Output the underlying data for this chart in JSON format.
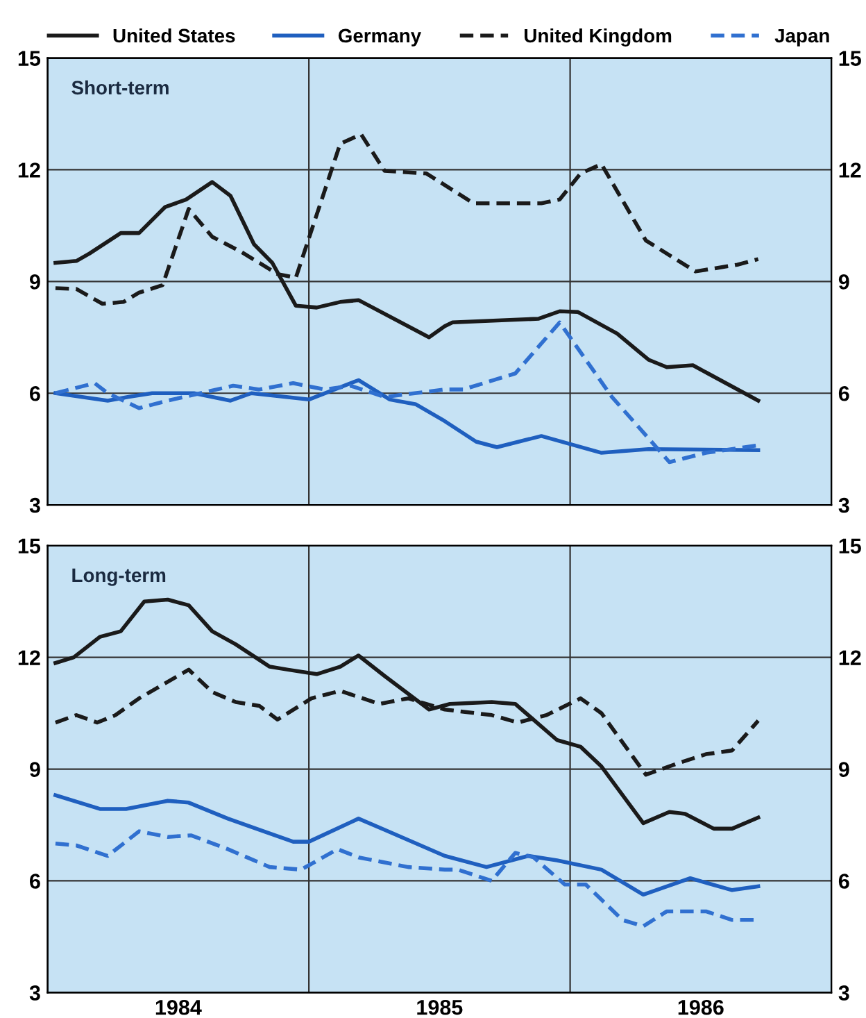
{
  "chart_data": [
    {
      "type": "line",
      "annotations": [
        "Short-term"
      ],
      "legend": "top",
      "grid": "y",
      "tick_labels": "y",
      "xlim": [
        1984,
        1987
      ],
      "ylim": [
        3,
        15
      ],
      "yticks": [
        3,
        6,
        9,
        12,
        15
      ],
      "y2lim": [
        3,
        15
      ],
      "y2ticks": [
        3,
        6,
        9,
        12,
        15
      ],
      "ref_lines": [
        {
          "axis": "x",
          "value": 1985
        },
        {
          "axis": "x",
          "value": 1986
        }
      ],
      "series": [
        {
          "name": "United States",
          "color": "#1a1a1a",
          "line_style": "solid",
          "x": [
            1984.03,
            1984.11,
            1984.16,
            1984.28,
            1984.35,
            1984.45,
            1984.53,
            1984.63,
            1984.7,
            1984.79,
            1984.86,
            1984.95,
            1985.03,
            1985.12,
            1985.19,
            1985.46,
            1985.52,
            1985.55,
            1985.88,
            1985.96,
            1986.03,
            1986.18,
            1986.3,
            1986.37,
            1986.47,
            1986.72
          ],
          "values": [
            9.5,
            9.55,
            9.75,
            10.3,
            10.3,
            11.0,
            11.2,
            11.67,
            11.3,
            10.0,
            9.5,
            8.35,
            8.3,
            8.45,
            8.5,
            7.5,
            7.8,
            7.9,
            8.0,
            8.2,
            8.18,
            7.6,
            6.9,
            6.7,
            6.75,
            5.8
          ]
        },
        {
          "name": "Germany",
          "color": "#1f5fbf",
          "line_style": "solid",
          "x": [
            1984.03,
            1984.23,
            1984.31,
            1984.4,
            1984.56,
            1984.7,
            1984.78,
            1985.0,
            1985.19,
            1985.31,
            1985.41,
            1985.52,
            1985.64,
            1985.72,
            1985.89,
            1986.12,
            1986.3,
            1986.72
          ],
          "values": [
            6.0,
            5.8,
            5.9,
            6.0,
            6.0,
            5.8,
            6.0,
            5.83,
            6.35,
            5.83,
            5.7,
            5.25,
            4.7,
            4.55,
            4.85,
            4.4,
            4.5,
            4.47
          ]
        },
        {
          "name": "United Kingdom",
          "color": "#1a1a1a",
          "line_style": "dashed",
          "x": [
            1984.03,
            1984.11,
            1984.21,
            1984.29,
            1984.35,
            1984.44,
            1984.54,
            1984.63,
            1984.74,
            1984.88,
            1984.95,
            1985.12,
            1985.2,
            1985.29,
            1985.45,
            1985.63,
            1985.89,
            1985.96,
            1986.04,
            1986.12,
            1986.29,
            1986.48,
            1986.64,
            1986.72
          ],
          "values": [
            8.82,
            8.8,
            8.4,
            8.45,
            8.7,
            8.9,
            10.95,
            10.2,
            9.8,
            9.2,
            9.1,
            12.7,
            12.95,
            11.97,
            11.9,
            11.1,
            11.1,
            11.2,
            11.9,
            12.15,
            10.1,
            9.27,
            9.45,
            9.6
          ]
        },
        {
          "name": "Japan",
          "color": "#3070d0",
          "line_style": "dashed",
          "x": [
            1984.03,
            1984.18,
            1984.23,
            1984.35,
            1984.46,
            1984.71,
            1984.81,
            1984.94,
            1985.06,
            1985.16,
            1985.29,
            1985.52,
            1985.59,
            1985.79,
            1985.96,
            1986.03,
            1986.16,
            1986.28,
            1986.38,
            1986.52,
            1986.72
          ],
          "values": [
            6.0,
            6.27,
            6.0,
            5.6,
            5.8,
            6.2,
            6.1,
            6.27,
            6.1,
            6.2,
            5.9,
            6.1,
            6.1,
            6.53,
            7.9,
            7.2,
            5.9,
            4.95,
            4.15,
            4.4,
            4.6
          ]
        }
      ]
    },
    {
      "type": "line",
      "annotations": [
        "Long-term"
      ],
      "legend": false,
      "grid": "y",
      "xlim": [
        1984,
        1987
      ],
      "xticks": [
        {
          "value": 1984.5,
          "label": "1984"
        },
        {
          "value": 1985.5,
          "label": "1985"
        },
        {
          "value": 1986.5,
          "label": "1986"
        }
      ],
      "ylim": [
        3,
        15
      ],
      "yticks": [
        3,
        6,
        9,
        12,
        15
      ],
      "y2lim": [
        3,
        15
      ],
      "y2ticks": [
        3,
        6,
        9,
        12,
        15
      ],
      "ref_lines": [
        {
          "axis": "x",
          "value": 1985
        },
        {
          "axis": "x",
          "value": 1986
        }
      ],
      "series": [
        {
          "color": "#1a1a1a",
          "line_style": "solid",
          "x": [
            1984.03,
            1984.1,
            1984.2,
            1984.28,
            1984.37,
            1984.46,
            1984.54,
            1984.63,
            1984.72,
            1984.85,
            1984.92,
            1985.03,
            1985.12,
            1985.19,
            1985.29,
            1985.46,
            1985.54,
            1985.7,
            1985.79,
            1985.95,
            1986.04,
            1986.12,
            1986.28,
            1986.38,
            1986.44,
            1986.55,
            1986.62,
            1986.72
          ],
          "values": [
            11.85,
            12.0,
            12.55,
            12.7,
            13.5,
            13.55,
            13.4,
            12.7,
            12.35,
            11.75,
            11.67,
            11.55,
            11.75,
            12.05,
            11.5,
            10.6,
            10.75,
            10.8,
            10.75,
            9.78,
            9.6,
            9.07,
            7.55,
            7.85,
            7.8,
            7.4,
            7.4,
            7.7
          ]
        },
        {
          "color": "#1f5fbf",
          "line_style": "solid",
          "x": [
            1984.03,
            1984.2,
            1984.3,
            1984.46,
            1984.54,
            1984.69,
            1984.81,
            1984.94,
            1985.0,
            1985.19,
            1985.29,
            1985.52,
            1985.68,
            1985.84,
            1985.95,
            1986.12,
            1986.28,
            1986.46,
            1986.62,
            1986.72
          ],
          "values": [
            8.3,
            7.93,
            7.93,
            8.15,
            8.1,
            7.67,
            7.37,
            7.05,
            7.05,
            7.67,
            7.37,
            6.67,
            6.37,
            6.67,
            6.55,
            6.3,
            5.63,
            6.07,
            5.75,
            5.85
          ]
        },
        {
          "color": "#1a1a1a",
          "line_style": "dashed",
          "x": [
            1984.03,
            1984.11,
            1984.19,
            1984.26,
            1984.35,
            1984.54,
            1984.63,
            1984.72,
            1984.81,
            1984.88,
            1985.01,
            1985.12,
            1985.27,
            1985.38,
            1985.52,
            1985.7,
            1985.8,
            1985.91,
            1986.04,
            1986.12,
            1986.29,
            1986.41,
            1986.52,
            1986.62,
            1986.72
          ],
          "values": [
            10.25,
            10.45,
            10.25,
            10.45,
            10.9,
            11.67,
            11.07,
            10.8,
            10.7,
            10.33,
            10.9,
            11.1,
            10.75,
            10.9,
            10.6,
            10.45,
            10.25,
            10.45,
            10.9,
            10.5,
            8.85,
            9.15,
            9.4,
            9.5,
            10.3
          ]
        },
        {
          "color": "#3070d0",
          "line_style": "dashed",
          "x": [
            1984.03,
            1984.11,
            1984.23,
            1984.35,
            1984.46,
            1984.55,
            1984.69,
            1984.85,
            1984.97,
            1985.11,
            1985.19,
            1985.38,
            1985.52,
            1985.57,
            1985.7,
            1985.79,
            1985.86,
            1985.98,
            1986.06,
            1986.2,
            1986.28,
            1986.37,
            1986.52,
            1986.62,
            1986.72
          ],
          "values": [
            7.0,
            6.95,
            6.67,
            7.33,
            7.18,
            7.22,
            6.85,
            6.37,
            6.3,
            6.85,
            6.63,
            6.37,
            6.3,
            6.3,
            6.0,
            6.75,
            6.63,
            5.9,
            5.9,
            4.95,
            4.78,
            5.18,
            5.18,
            4.95,
            4.95
          ]
        }
      ]
    }
  ]
}
